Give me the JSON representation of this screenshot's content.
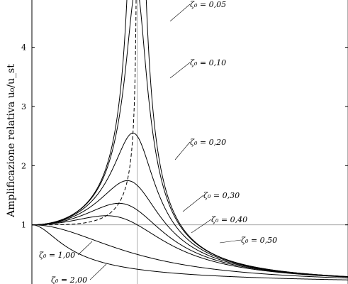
{
  "chart_data": {
    "type": "line",
    "title": "",
    "xlabel": "",
    "ylabel": "Amplificazione relativa u₀/u_st",
    "xlim": [
      0,
      3
    ],
    "ylim": [
      0,
      4.8
    ],
    "yticks": [
      "1",
      "2",
      "3",
      "4"
    ],
    "ytick_values": [
      1,
      2,
      3,
      4
    ],
    "reference_lines": {
      "y": 1,
      "x": 1
    },
    "grid": false,
    "series": [
      {
        "name": "ζ₀ = 0,05",
        "zeta": 0.05
      },
      {
        "name": "ζ₀ = 0,10",
        "zeta": 0.1
      },
      {
        "name": "ζ₀ = 0,20",
        "zeta": 0.2
      },
      {
        "name": "ζ₀ = 0,30",
        "zeta": 0.3
      },
      {
        "name": "ζ₀ = 0,40",
        "zeta": 0.4
      },
      {
        "name": "ζ₀ = 0,50",
        "zeta": 0.5
      },
      {
        "name": "ζ₀ = 1,00",
        "zeta": 1.0
      },
      {
        "name": "ζ₀ = 2,00",
        "zeta": 2.0
      }
    ],
    "peak_locus": {
      "style": "dashed"
    }
  }
}
